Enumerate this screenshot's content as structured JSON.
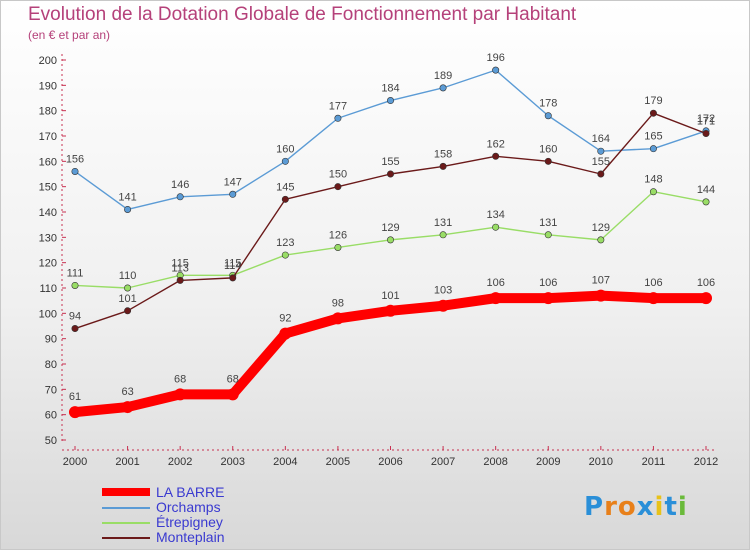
{
  "title": "Evolution de la Dotation Globale de Fonctionnement par Habitant",
  "subtitle": "(en € et par an)",
  "logo": {
    "text": "Proxiti",
    "letters": [
      "P",
      "r",
      "o",
      "x",
      "i",
      "t",
      "i"
    ],
    "colors": [
      "#2a8fd8",
      "#e8801a",
      "#e8801a",
      "#2a8fd8",
      "#e8c21a",
      "#2a8fd8",
      "#6aba3a"
    ]
  },
  "chart_data": {
    "type": "line",
    "title": "Evolution de la Dotation Globale de Fonctionnement par Habitant",
    "subtitle": "(en € et par an)",
    "xlabel": "",
    "ylabel": "",
    "ylim": [
      50,
      200
    ],
    "yticks": [
      50,
      60,
      70,
      80,
      90,
      100,
      110,
      120,
      130,
      140,
      150,
      160,
      170,
      180,
      190,
      200
    ],
    "categories": [
      "2000",
      "2001",
      "2002",
      "2003",
      "2004",
      "2005",
      "2006",
      "2007",
      "2008",
      "2009",
      "2010",
      "2011",
      "2012"
    ],
    "grid": false,
    "legend_position": "bottom-left",
    "series": [
      {
        "name": "Orchamps",
        "color": "#5b9bd5",
        "values": [
          156,
          141,
          146,
          147,
          160,
          177,
          184,
          189,
          196,
          178,
          164,
          165,
          172
        ]
      },
      {
        "name": "Étrepigney",
        "color": "#99dd66",
        "values": [
          111,
          110,
          115,
          115,
          123,
          126,
          129,
          131,
          134,
          131,
          129,
          148,
          144
        ]
      },
      {
        "name": "Monteplain",
        "color": "#6b1a1a",
        "values": [
          94,
          101,
          113,
          114,
          145,
          150,
          155,
          158,
          162,
          160,
          155,
          179,
          171
        ]
      },
      {
        "name": "LA BARRE",
        "color": "#ff0000",
        "values": [
          61,
          63,
          68,
          68,
          92,
          98,
          101,
          103,
          106,
          106,
          107,
          106,
          106
        ]
      }
    ],
    "legend_order": [
      "LA BARRE",
      "Orchamps",
      "Étrepigney",
      "Monteplain"
    ]
  }
}
